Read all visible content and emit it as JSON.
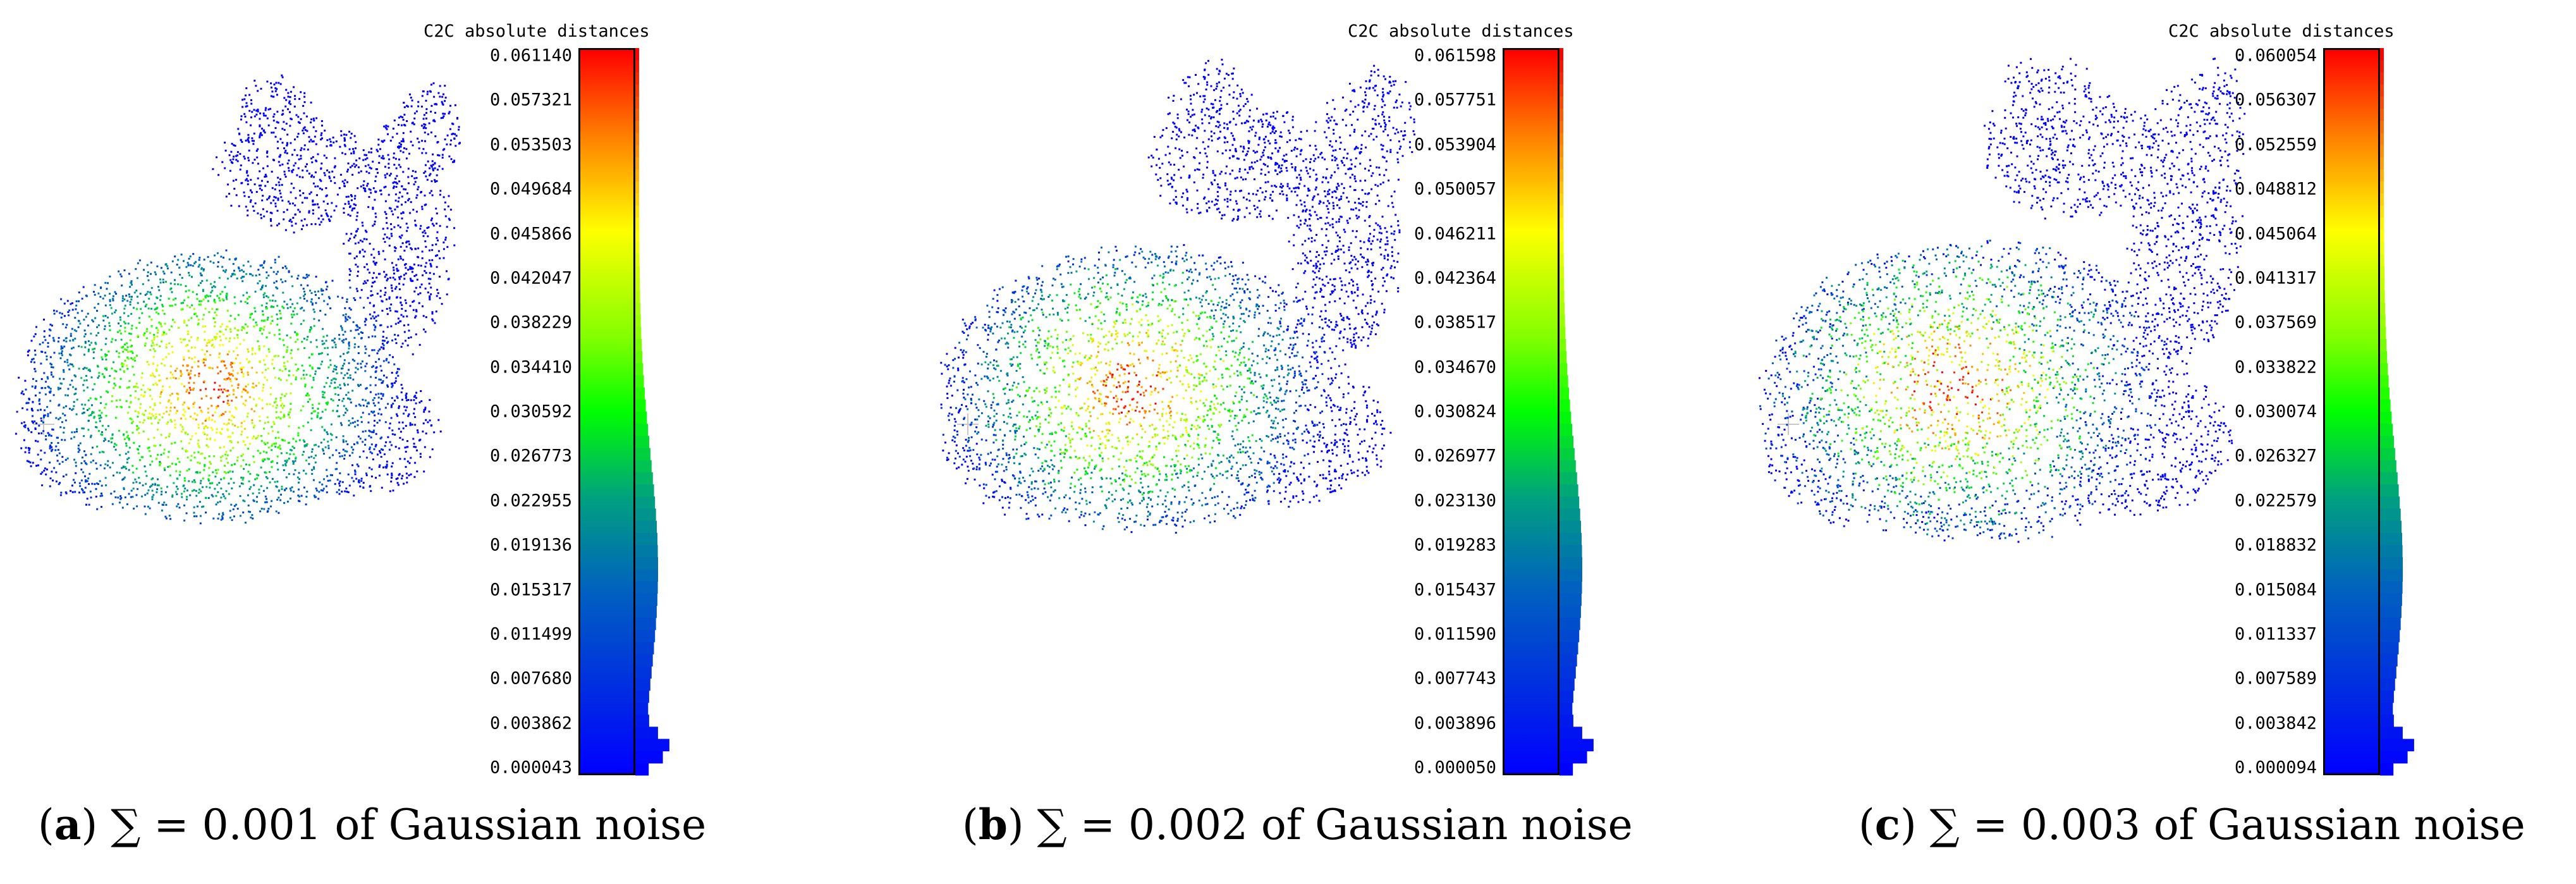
{
  "panels": [
    {
      "label": "a",
      "caption_text": "∑ = 0.001 of Gaussian noise",
      "legend_title": "C2C absolute distances",
      "ticks": [
        "0.061140",
        "0.057321",
        "0.053503",
        "0.049684",
        "0.045866",
        "0.042047",
        "0.038229",
        "0.034410",
        "0.030592",
        "0.026773",
        "0.022955",
        "0.019136",
        "0.015317",
        "0.011499",
        "0.007680",
        "0.003862",
        "0.000043"
      ]
    },
    {
      "label": "b",
      "caption_text": "∑ = 0.002 of Gaussian noise",
      "legend_title": "C2C absolute distances",
      "ticks": [
        "0.061598",
        "0.057751",
        "0.053904",
        "0.050057",
        "0.046211",
        "0.042364",
        "0.038517",
        "0.034670",
        "0.030824",
        "0.026977",
        "0.023130",
        "0.019283",
        "0.015437",
        "0.011590",
        "0.007743",
        "0.003896",
        "0.000050"
      ]
    },
    {
      "label": "c",
      "caption_text": "∑ = 0.003 of Gaussian noise",
      "legend_title": "C2C absolute distances",
      "ticks": [
        "0.060054",
        "0.056307",
        "0.052559",
        "0.048812",
        "0.045064",
        "0.041317",
        "0.037569",
        "0.033822",
        "0.030074",
        "0.026327",
        "0.022579",
        "0.018832",
        "0.015084",
        "0.011337",
        "0.007589",
        "0.003842",
        "0.000094"
      ]
    }
  ],
  "colors": {
    "high": "#ff0000",
    "mid": "#00ff00",
    "low": "#0000ff"
  }
}
